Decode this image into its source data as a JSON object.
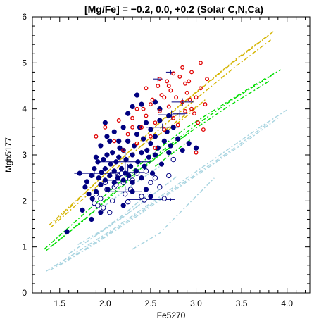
{
  "chart_data": {
    "type": "scatter",
    "title": "[Mg/Fe] = −0.2, 0.0, +0.2   (Solar C,N,Ca)",
    "xlabel": "Fe5270",
    "ylabel": "Mgb5177",
    "xlim": [
      1.2,
      4.25
    ],
    "ylim": [
      0,
      6
    ],
    "xticks": [
      1.5,
      2.0,
      2.5,
      3.0,
      3.5,
      4.0
    ],
    "xtick_labels": [
      "1.5",
      "2.0",
      "2.5",
      "3.0",
      "3.5",
      "4.0"
    ],
    "yticks": [
      0,
      1,
      2,
      3,
      4,
      5,
      6
    ],
    "ytick_labels": [
      "0",
      "1",
      "2",
      "3",
      "4",
      "5",
      "6"
    ],
    "grid": false,
    "colors": {
      "mg_minus": "#a8d4e0",
      "mg_solar": "#00dd00",
      "mg_plus": "#d4b400",
      "filled": "#000080",
      "open_blue": "#000080",
      "open_red": "#e00000"
    },
    "model_grids": [
      {
        "color": "#d4b400",
        "lines": [
          [
            [
              1.38,
              1.47
            ],
            [
              1.8,
              2.22
            ],
            [
              2.2,
              2.95
            ],
            [
              2.6,
              3.7
            ],
            [
              3.0,
              4.35
            ],
            [
              3.4,
              5.0
            ],
            [
              3.8,
              5.6
            ]
          ],
          [
            [
              1.4,
              1.42
            ],
            [
              1.82,
              2.15
            ],
            [
              2.22,
              2.88
            ],
            [
              2.62,
              3.6
            ],
            [
              3.02,
              4.25
            ],
            [
              3.42,
              4.9
            ],
            [
              3.82,
              5.5
            ]
          ],
          [
            [
              1.45,
              1.55
            ],
            [
              1.85,
              2.3
            ],
            [
              2.25,
              3.05
            ],
            [
              2.65,
              3.8
            ],
            [
              3.05,
              4.45
            ],
            [
              3.45,
              5.1
            ],
            [
              3.85,
              5.68
            ]
          ],
          [
            [
              2.4,
              3.2
            ],
            [
              2.6,
              3.45
            ],
            [
              2.8,
              3.75
            ],
            [
              3.0,
              4.05
            ]
          ],
          [
            [
              2.7,
              3.55
            ],
            [
              2.9,
              3.85
            ],
            [
              3.1,
              4.2
            ]
          ]
        ]
      },
      {
        "color": "#00dd00",
        "lines": [
          [
            [
              1.33,
              0.95
            ],
            [
              1.7,
              1.6
            ],
            [
              2.1,
              2.3
            ],
            [
              2.5,
              3.0
            ],
            [
              2.9,
              3.6
            ],
            [
              3.3,
              4.1
            ],
            [
              3.75,
              4.65
            ],
            [
              3.93,
              4.85
            ]
          ],
          [
            [
              1.35,
              0.92
            ],
            [
              1.75,
              1.55
            ],
            [
              2.15,
              2.25
            ],
            [
              2.55,
              2.92
            ],
            [
              2.95,
              3.52
            ],
            [
              3.35,
              4.05
            ],
            [
              3.8,
              4.6
            ]
          ],
          [
            [
              1.4,
              1.0
            ],
            [
              1.8,
              1.65
            ],
            [
              2.2,
              2.38
            ],
            [
              2.6,
              3.05
            ],
            [
              3.0,
              3.65
            ],
            [
              3.4,
              4.2
            ],
            [
              3.85,
              4.75
            ]
          ],
          [
            [
              2.3,
              2.6
            ],
            [
              2.5,
              2.85
            ],
            [
              2.7,
              3.15
            ],
            [
              2.9,
              3.45
            ]
          ],
          [
            [
              2.55,
              2.75
            ],
            [
              2.75,
              3.05
            ],
            [
              2.95,
              3.35
            ]
          ]
        ]
      },
      {
        "color": "#a8d4e0",
        "lines": [
          [
            [
              1.35,
              0.47
            ],
            [
              1.7,
              0.9
            ],
            [
              2.1,
              1.4
            ],
            [
              2.5,
              1.95
            ],
            [
              2.9,
              2.5
            ],
            [
              3.3,
              3.05
            ],
            [
              3.7,
              3.6
            ],
            [
              4.0,
              3.98
            ]
          ],
          [
            [
              1.4,
              0.5
            ],
            [
              1.8,
              0.98
            ],
            [
              2.2,
              1.5
            ],
            [
              2.6,
              2.05
            ],
            [
              3.0,
              2.58
            ],
            [
              3.4,
              3.12
            ],
            [
              3.8,
              3.7
            ]
          ],
          [
            [
              1.5,
              0.6
            ],
            [
              1.9,
              1.08
            ],
            [
              2.3,
              1.6
            ],
            [
              2.7,
              2.15
            ],
            [
              3.1,
              2.68
            ],
            [
              3.5,
              3.22
            ],
            [
              3.9,
              3.8
            ]
          ],
          [
            [
              1.6,
              0.85
            ],
            [
              1.9,
              1.25
            ],
            [
              2.2,
              1.65
            ],
            [
              2.5,
              2.1
            ],
            [
              2.8,
              2.55
            ]
          ],
          [
            [
              1.7,
              1.05
            ],
            [
              2.0,
              1.4
            ],
            [
              2.3,
              1.8
            ],
            [
              2.6,
              2.25
            ]
          ],
          [
            [
              1.9,
              1.25
            ],
            [
              2.2,
              1.7
            ],
            [
              2.5,
              2.2
            ]
          ],
          [
            [
              2.0,
              1.9
            ],
            [
              2.3,
              2.35
            ],
            [
              2.6,
              2.75
            ]
          ],
          [
            [
              2.3,
              0.95
            ],
            [
              2.6,
              1.3
            ],
            [
              2.9,
              1.9
            ],
            [
              3.2,
              2.5
            ]
          ]
        ]
      }
    ],
    "filled_points": [
      [
        1.58,
        1.33
      ],
      [
        1.72,
        2.6
      ],
      [
        1.78,
        2.3
      ],
      [
        1.8,
        2.42
      ],
      [
        1.82,
        2.15
      ],
      [
        1.85,
        2.55
      ],
      [
        1.86,
        2.05
      ],
      [
        1.88,
        2.7
      ],
      [
        1.9,
        2.2
      ],
      [
        1.92,
        2.85
      ],
      [
        1.93,
        2.5
      ],
      [
        1.95,
        2.35
      ],
      [
        1.96,
        2.62
      ],
      [
        1.98,
        2.9
      ],
      [
        2.0,
        2.45
      ],
      [
        2.0,
        2.7
      ],
      [
        2.02,
        3.0
      ],
      [
        2.03,
        2.25
      ],
      [
        2.05,
        2.55
      ],
      [
        2.06,
        2.8
      ],
      [
        2.08,
        3.05
      ],
      [
        2.1,
        2.4
      ],
      [
        2.1,
        2.65
      ],
      [
        2.12,
        2.85
      ],
      [
        2.14,
        2.5
      ],
      [
        2.15,
        2.95
      ],
      [
        2.16,
        3.15
      ],
      [
        2.18,
        2.7
      ],
      [
        2.2,
        2.45
      ],
      [
        2.2,
        3.1
      ],
      [
        2.22,
        2.6
      ],
      [
        2.23,
        2.9
      ],
      [
        2.25,
        3.3
      ],
      [
        2.26,
        2.55
      ],
      [
        2.28,
        2.75
      ],
      [
        2.3,
        3.0
      ],
      [
        2.3,
        2.4
      ],
      [
        2.32,
        3.2
      ],
      [
        2.34,
        2.65
      ],
      [
        2.35,
        3.45
      ],
      [
        2.36,
        2.85
      ],
      [
        2.38,
        3.6
      ],
      [
        2.4,
        3.05
      ],
      [
        2.4,
        2.5
      ],
      [
        2.42,
        3.35
      ],
      [
        2.43,
        2.75
      ],
      [
        2.45,
        3.7
      ],
      [
        2.46,
        3.1
      ],
      [
        2.48,
        2.95
      ],
      [
        2.5,
        3.55
      ],
      [
        2.5,
        3.25
      ],
      [
        2.52,
        2.6
      ],
      [
        2.55,
        3.0
      ],
      [
        2.55,
        3.4
      ],
      [
        2.58,
        3.15
      ],
      [
        2.6,
        3.75
      ],
      [
        2.62,
        2.8
      ],
      [
        2.65,
        3.3
      ],
      [
        2.68,
        3.5
      ],
      [
        2.7,
        3.05
      ],
      [
        2.72,
        3.2
      ],
      [
        2.75,
        3.6
      ],
      [
        2.8,
        3.35
      ],
      [
        2.85,
        3.1
      ],
      [
        2.25,
        3.9
      ],
      [
        2.3,
        4.05
      ],
      [
        2.0,
        3.7
      ],
      [
        2.1,
        3.5
      ],
      [
        2.2,
        3.6
      ],
      [
        2.15,
        3.3
      ],
      [
        1.95,
        3.2
      ],
      [
        2.05,
        3.3
      ],
      [
        1.9,
        2.95
      ],
      [
        2.02,
        3.4
      ],
      [
        2.45,
        2.25
      ],
      [
        2.5,
        2.1
      ],
      [
        1.75,
        1.8
      ],
      [
        1.95,
        1.75
      ],
      [
        2.2,
        1.9
      ],
      [
        2.3,
        2.2
      ],
      [
        2.6,
        4.0
      ],
      [
        2.7,
        3.85
      ],
      [
        2.55,
        4.15
      ],
      [
        2.35,
        4.3
      ],
      [
        2.4,
        4.1
      ],
      [
        2.92,
        3.25
      ],
      [
        3.0,
        3.15
      ],
      [
        1.85,
        1.6
      ]
    ],
    "open_blue_points": [
      [
        1.88,
        1.95
      ],
      [
        1.9,
        2.15
      ],
      [
        1.92,
        1.9
      ],
      [
        1.95,
        2.05
      ],
      [
        1.98,
        1.85
      ],
      [
        2.02,
        2.25
      ],
      [
        2.05,
        1.75
      ],
      [
        2.08,
        2.0
      ],
      [
        2.1,
        2.3
      ],
      [
        2.12,
        2.35
      ],
      [
        2.15,
        2.55
      ],
      [
        2.18,
        2.6
      ],
      [
        2.2,
        2.4
      ],
      [
        2.25,
        1.98
      ],
      [
        2.28,
        2.25
      ],
      [
        2.3,
        2.45
      ],
      [
        2.35,
        2.6
      ],
      [
        2.4,
        2.1
      ],
      [
        2.43,
        2.02
      ],
      [
        2.45,
        2.65
      ],
      [
        2.5,
        2.4
      ],
      [
        2.55,
        2.5
      ],
      [
        2.6,
        2.3
      ],
      [
        2.65,
        2.05
      ],
      [
        2.7,
        2.55
      ],
      [
        2.75,
        2.9
      ],
      [
        2.0,
        2.4
      ],
      [
        2.22,
        2.15
      ]
    ],
    "open_red_points": [
      [
        1.9,
        3.4
      ],
      [
        2.0,
        3.6
      ],
      [
        2.1,
        3.3
      ],
      [
        2.15,
        3.75
      ],
      [
        2.2,
        3.1
      ],
      [
        2.25,
        3.45
      ],
      [
        2.3,
        3.8
      ],
      [
        2.35,
        3.25
      ],
      [
        2.4,
        3.6
      ],
      [
        2.42,
        4.0
      ],
      [
        2.45,
        3.85
      ],
      [
        2.5,
        3.4
      ],
      [
        2.52,
        4.2
      ],
      [
        2.55,
        3.7
      ],
      [
        2.58,
        4.5
      ],
      [
        2.6,
        3.95
      ],
      [
        2.62,
        4.3
      ],
      [
        2.65,
        3.55
      ],
      [
        2.68,
        4.6
      ],
      [
        2.7,
        4.05
      ],
      [
        2.72,
        4.4
      ],
      [
        2.75,
        3.8
      ],
      [
        2.78,
        4.25
      ],
      [
        2.8,
        3.65
      ],
      [
        2.82,
        4.7
      ],
      [
        2.85,
        4.15
      ],
      [
        2.88,
        3.95
      ],
      [
        2.9,
        4.35
      ],
      [
        2.92,
        4.6
      ],
      [
        2.95,
        4.0
      ],
      [
        2.98,
        3.9
      ],
      [
        3.0,
        4.25
      ],
      [
        3.02,
        3.7
      ],
      [
        3.05,
        4.45
      ],
      [
        3.08,
        3.55
      ],
      [
        3.1,
        4.1
      ],
      [
        3.05,
        5.0
      ],
      [
        2.95,
        4.8
      ],
      [
        2.75,
        4.77
      ],
      [
        2.6,
        4.65
      ],
      [
        2.85,
        4.9
      ],
      [
        2.7,
        4.5
      ],
      [
        2.5,
        4.1
      ],
      [
        2.35,
        4.0
      ],
      [
        2.3,
        3.6
      ],
      [
        2.45,
        4.45
      ],
      [
        3.0,
        3.05
      ],
      [
        2.55,
        3.15
      ],
      [
        2.88,
        4.55
      ],
      [
        2.65,
        4.25
      ],
      [
        3.12,
        4.65
      ],
      [
        2.93,
        4.2
      ]
    ],
    "error_bars": [
      [
        1.88,
        2.6,
        0.22,
        0.08
      ],
      [
        2.12,
        2.45,
        0.14,
        0.2
      ],
      [
        2.22,
        2.85,
        0.28,
        0.22
      ],
      [
        2.25,
        2.62,
        0.2,
        0.18
      ],
      [
        2.22,
        2.2,
        0.18,
        0.12
      ],
      [
        2.45,
        2.03,
        0.2,
        0.2
      ],
      [
        2.72,
        2.03,
        0.05,
        0.03
      ],
      [
        2.63,
        3.6,
        0.18,
        0.08
      ],
      [
        2.73,
        3.87,
        0.15,
        0.1
      ],
      [
        2.85,
        4.15,
        0.12,
        0.08
      ],
      [
        2.58,
        4.65,
        0.05,
        0.05
      ],
      [
        2.72,
        4.8,
        0.05,
        0.05
      ],
      [
        2.82,
        3.9,
        0.08,
        0.08
      ]
    ]
  }
}
